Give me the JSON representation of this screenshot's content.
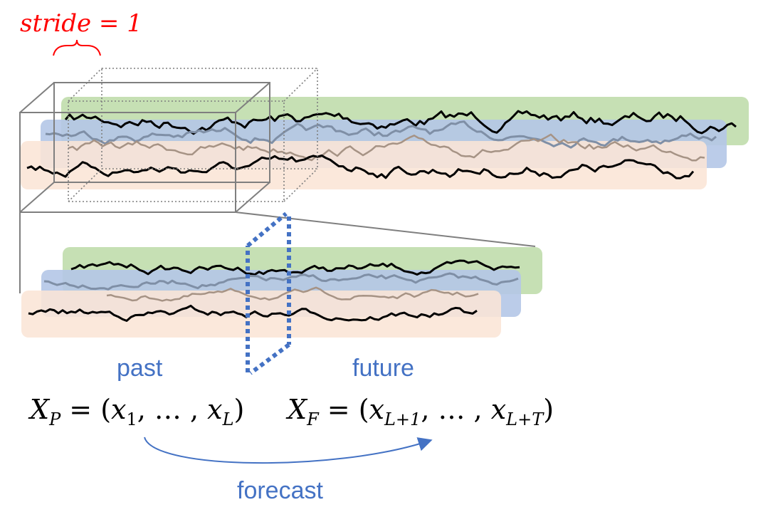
{
  "stride": {
    "text": "stride = 1",
    "color": "#ff0000"
  },
  "labels": {
    "past": "past",
    "future": "future",
    "forecast": "forecast",
    "color": "#4472c4"
  },
  "equations": {
    "past": "X_P = (x_1, …, x_L)",
    "future": "X_F = (x_{L+1}, …, x_{L+T})"
  },
  "band_colors": {
    "green": "#c6e0b4",
    "blue": "#b4c7e7",
    "orange": "#fbe5d6"
  },
  "series_colors": {
    "dark": "#000000",
    "muted_blue": "#7f8fa6",
    "muted_brown": "#a69385"
  },
  "dashed_divider_color": "#4472c4"
}
